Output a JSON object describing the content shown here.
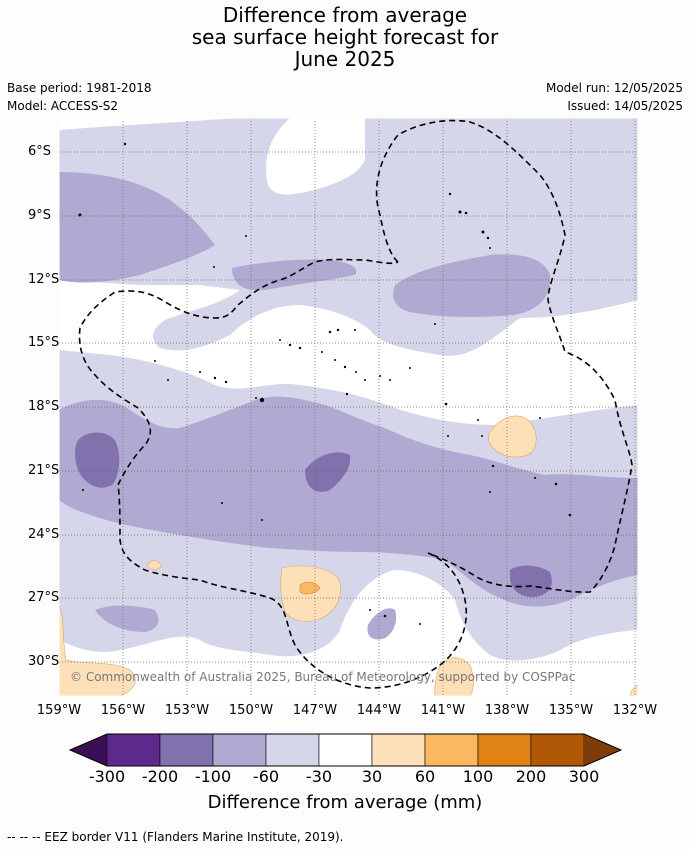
{
  "title_lines": [
    "Difference from average",
    "sea surface height forecast for",
    "June 2025"
  ],
  "base_period": "Base period: 1981-2018",
  "model": "Model: ACCESS-S2",
  "model_run": "Model run: 12/05/2025",
  "issued": "Issued: 14/05/2025",
  "lat_labels": [
    "6°S",
    "9°S",
    "12°S",
    "15°S",
    "18°S",
    "21°S",
    "24°S",
    "27°S",
    "30°S"
  ],
  "lon_labels": [
    "159°W",
    "156°W",
    "153°W",
    "150°W",
    "147°W",
    "144°W",
    "141°W",
    "138°W",
    "135°W",
    "132°W"
  ],
  "credit": "© Commonwealth of Australia 2025, Bureau of Meteorology, supported by COSPPac",
  "colorbar": {
    "labels": [
      "-300",
      "-200",
      "-100",
      "-60",
      "-30",
      "30",
      "60",
      "100",
      "200",
      "300"
    ],
    "colors": [
      "#3b0f55",
      "#5b2a8a",
      "#8171ad",
      "#b0a9d2",
      "#d6d6ea",
      "#ffffff",
      "#fde0b7",
      "#fbb861",
      "#e08314",
      "#b15806",
      "#7f3b08"
    ],
    "title": "Difference from average (mm)"
  },
  "footer": "--  --  -- EEZ border V11 (Flanders Marine Institute, 2019)."
}
